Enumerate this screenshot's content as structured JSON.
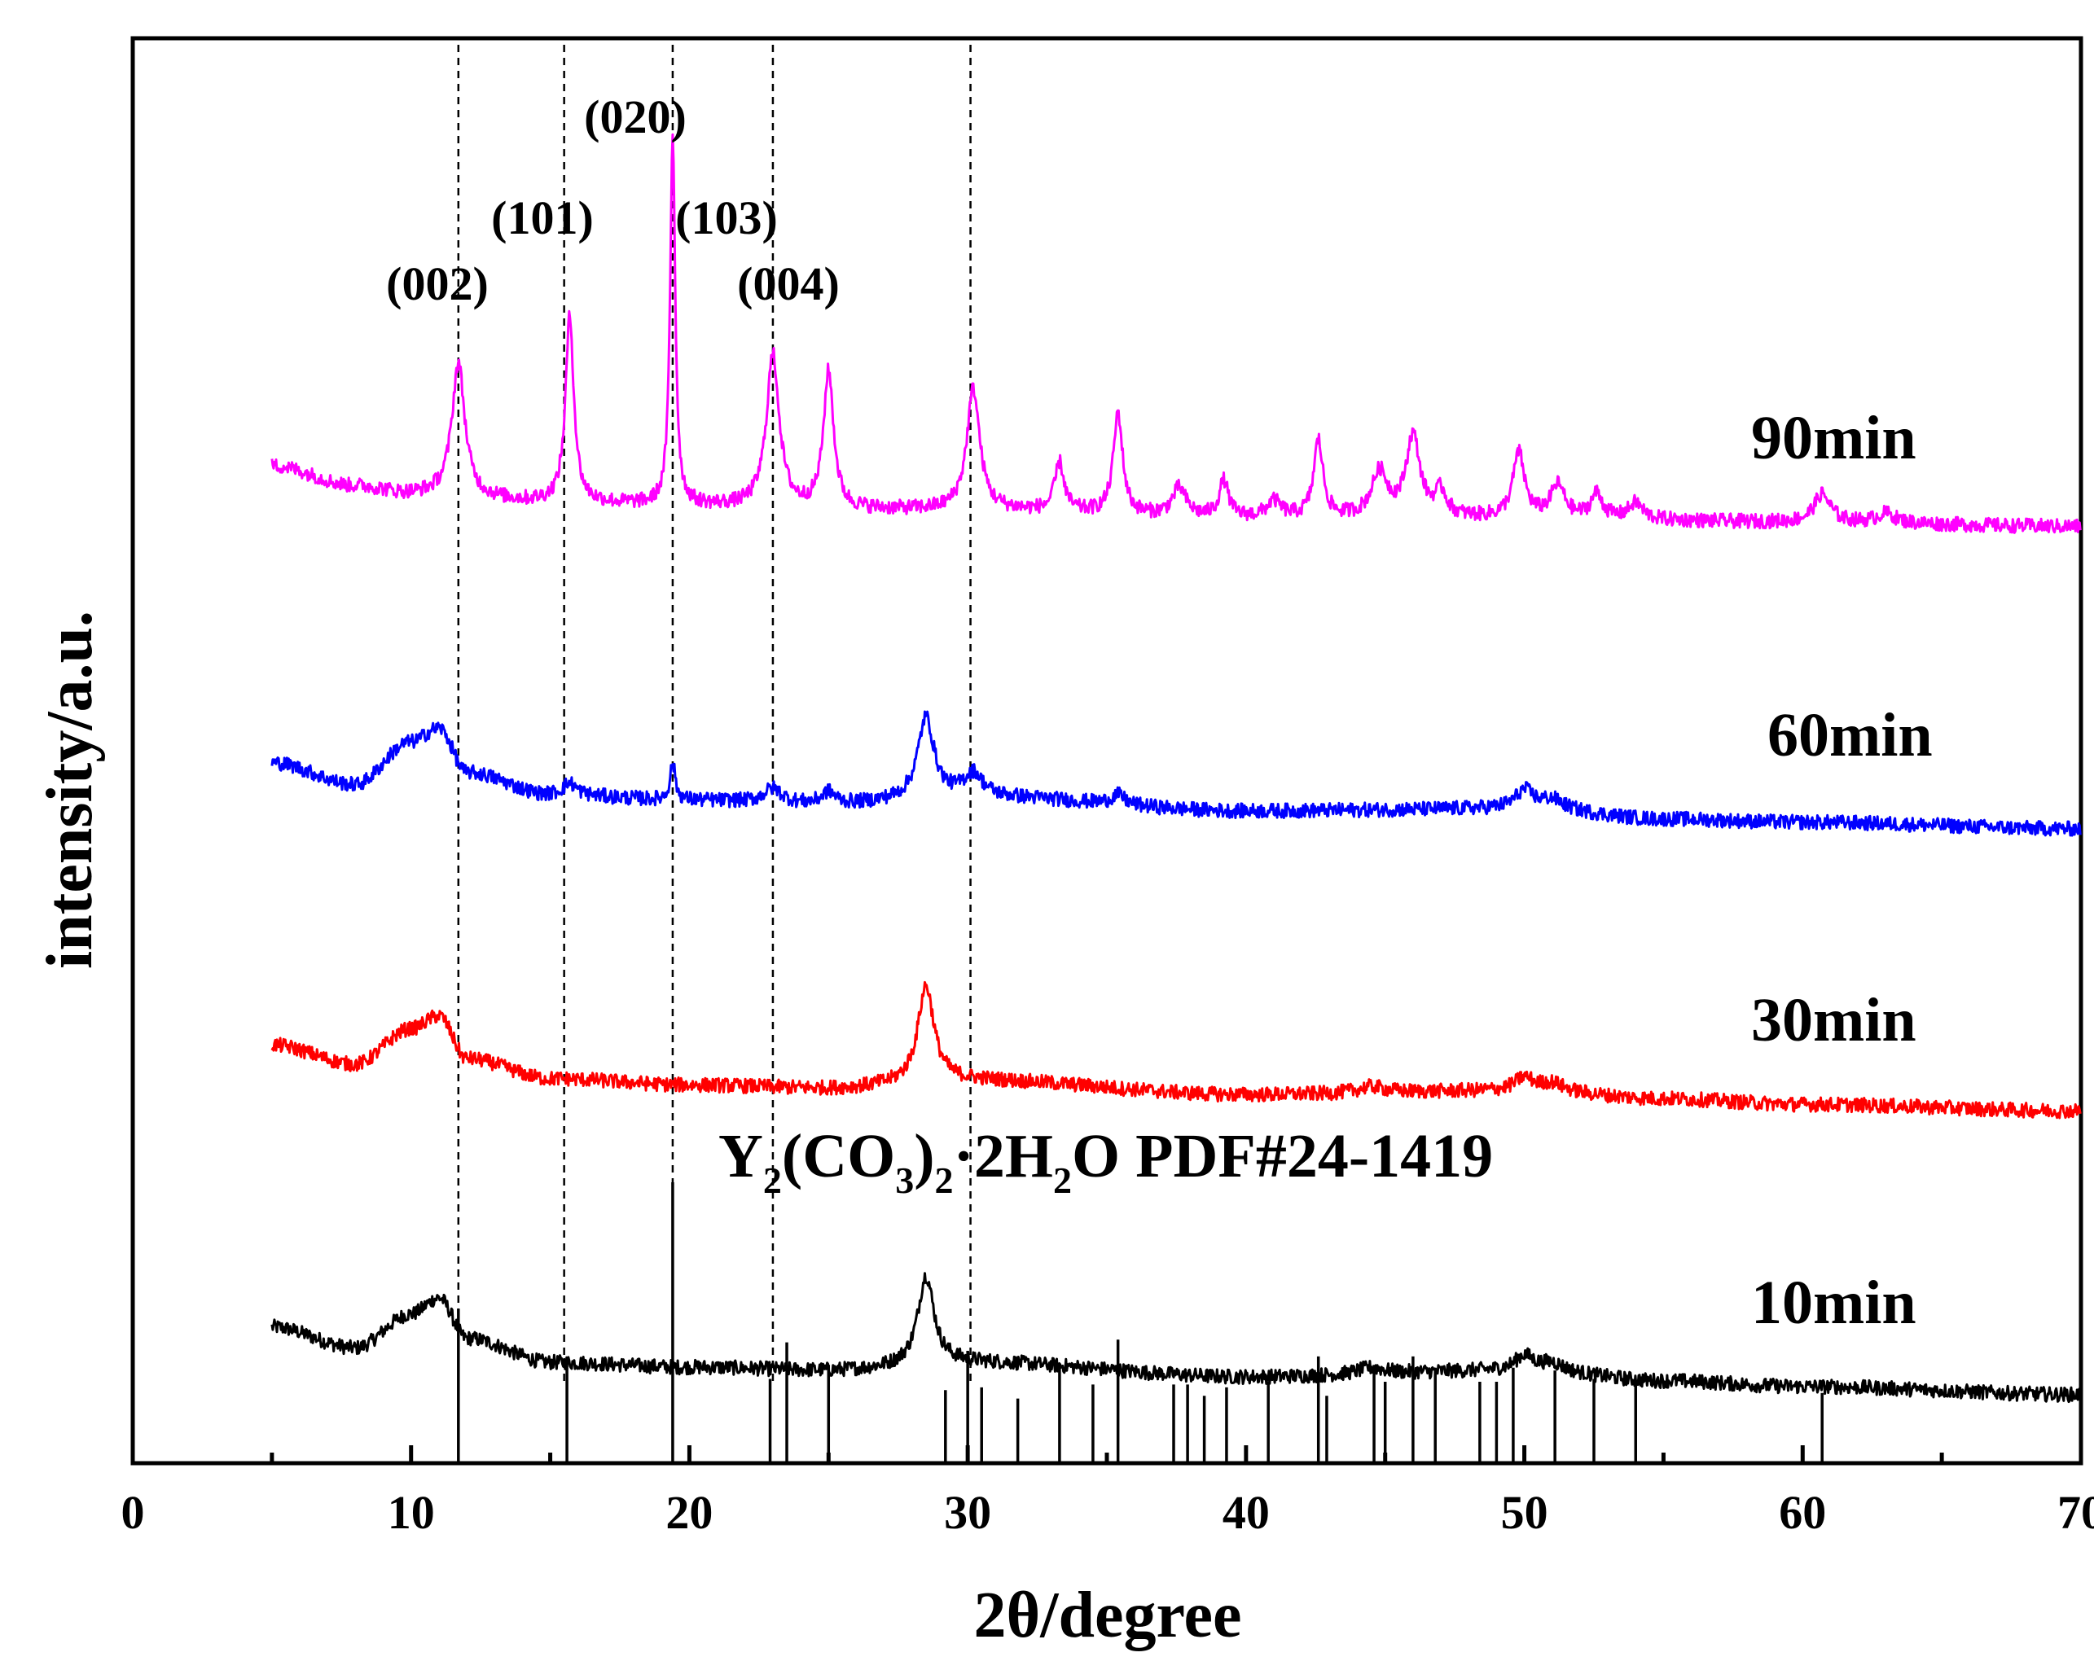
{
  "chart_data": {
    "type": "line",
    "title": "",
    "xlabel": "2θ/degree",
    "ylabel": "intensity/a.u.",
    "xlim": [
      0,
      70
    ],
    "x_ticks": [
      0,
      10,
      20,
      30,
      40,
      50,
      60,
      70
    ],
    "x_tick_labels": [
      "0",
      "10",
      "20",
      "30",
      "40",
      "50",
      "60",
      "70"
    ],
    "y_ticks_shown": false,
    "grid": false,
    "series_labels_note": "curves are vertically offset (stacked) for clarity",
    "series": [
      {
        "name": "10min",
        "color": "#000000",
        "offset": 0,
        "baseline": [
          [
            5,
            1.62
          ],
          [
            8,
            1.36
          ],
          [
            10,
            1.78
          ],
          [
            11,
            1.98
          ],
          [
            12,
            1.48
          ],
          [
            15,
            1.18
          ],
          [
            20,
            1.12
          ],
          [
            25,
            1.08
          ],
          [
            30,
            1.18
          ],
          [
            40,
            1.0
          ],
          [
            50,
            1.08
          ],
          [
            55,
            0.95
          ],
          [
            60,
            0.88
          ],
          [
            70,
            0.78
          ]
        ],
        "peaks": [
          {
            "x": 28.5,
            "h": 1.1,
            "w": 0.35
          },
          {
            "x": 50.0,
            "h": 0.18,
            "w": 0.4
          },
          {
            "x": 51.0,
            "h": 0.1,
            "w": 0.5
          },
          {
            "x": 44.5,
            "h": 0.08,
            "w": 0.6
          }
        ]
      },
      {
        "name": "30min",
        "color": "#ff0000",
        "offset": 3.5,
        "baseline": [
          [
            5,
            1.62
          ],
          [
            8,
            1.38
          ],
          [
            10,
            1.82
          ],
          [
            11,
            1.98
          ],
          [
            12,
            1.45
          ],
          [
            15,
            1.2
          ],
          [
            20,
            1.12
          ],
          [
            25,
            1.08
          ],
          [
            30,
            1.18
          ],
          [
            40,
            1.0
          ],
          [
            50,
            1.05
          ],
          [
            55,
            0.95
          ],
          [
            60,
            0.88
          ],
          [
            70,
            0.8
          ]
        ],
        "peaks": [
          {
            "x": 28.5,
            "h": 1.2,
            "w": 0.35
          },
          {
            "x": 50.0,
            "h": 0.16,
            "w": 0.4
          },
          {
            "x": 51.0,
            "h": 0.1,
            "w": 0.5
          },
          {
            "x": 44.5,
            "h": 0.08,
            "w": 0.6
          }
        ]
      },
      {
        "name": "60min",
        "color": "#0000ff",
        "offset": 7.0,
        "baseline": [
          [
            5,
            1.62
          ],
          [
            8,
            1.35
          ],
          [
            10,
            1.88
          ],
          [
            11,
            2.05
          ],
          [
            12,
            1.5
          ],
          [
            15,
            1.22
          ],
          [
            20,
            1.15
          ],
          [
            25,
            1.1
          ],
          [
            30,
            1.2
          ],
          [
            40,
            1.02
          ],
          [
            50,
            1.05
          ],
          [
            55,
            0.92
          ],
          [
            60,
            0.88
          ],
          [
            70,
            0.8
          ]
        ],
        "peaks": [
          {
            "x": 15.7,
            "h": 0.15,
            "w": 0.3
          },
          {
            "x": 19.4,
            "h": 0.45,
            "w": 0.12
          },
          {
            "x": 23.0,
            "h": 0.18,
            "w": 0.4
          },
          {
            "x": 25.0,
            "h": 0.15,
            "w": 0.3
          },
          {
            "x": 28.5,
            "h": 1.0,
            "w": 0.35
          },
          {
            "x": 30.2,
            "h": 0.28,
            "w": 0.4
          },
          {
            "x": 35.4,
            "h": 0.12,
            "w": 0.3
          },
          {
            "x": 50.0,
            "h": 0.22,
            "w": 0.4
          },
          {
            "x": 51.0,
            "h": 0.12,
            "w": 0.5
          }
        ]
      },
      {
        "name": "90min",
        "color": "#ff00ff",
        "offset": 10.7,
        "baseline": [
          [
            5,
            1.6
          ],
          [
            8,
            1.35
          ],
          [
            10,
            1.25
          ],
          [
            15,
            1.15
          ],
          [
            20,
            1.1
          ],
          [
            25,
            1.05
          ],
          [
            30,
            1.05
          ],
          [
            40,
            0.95
          ],
          [
            50,
            0.95
          ],
          [
            60,
            0.9
          ],
          [
            70,
            0.85
          ]
        ],
        "peaks": [
          {
            "x": 11.7,
            "h": 1.65,
            "w": 0.28
          },
          {
            "x": 15.7,
            "h": 2.3,
            "w": 0.18
          },
          {
            "x": 19.4,
            "h": 4.6,
            "w": 0.11
          },
          {
            "x": 23.0,
            "h": 1.9,
            "w": 0.28
          },
          {
            "x": 25.0,
            "h": 1.7,
            "w": 0.22
          },
          {
            "x": 30.2,
            "h": 1.5,
            "w": 0.28
          },
          {
            "x": 33.3,
            "h": 0.6,
            "w": 0.2
          },
          {
            "x": 35.4,
            "h": 1.25,
            "w": 0.2
          },
          {
            "x": 37.6,
            "h": 0.35,
            "w": 0.3
          },
          {
            "x": 39.2,
            "h": 0.45,
            "w": 0.2
          },
          {
            "x": 41.0,
            "h": 0.2,
            "w": 0.3
          },
          {
            "x": 42.6,
            "h": 0.95,
            "w": 0.2
          },
          {
            "x": 44.8,
            "h": 0.55,
            "w": 0.35
          },
          {
            "x": 46.0,
            "h": 1.0,
            "w": 0.3
          },
          {
            "x": 47.0,
            "h": 0.3,
            "w": 0.25
          },
          {
            "x": 49.8,
            "h": 0.8,
            "w": 0.25
          },
          {
            "x": 51.2,
            "h": 0.4,
            "w": 0.3
          },
          {
            "x": 52.6,
            "h": 0.3,
            "w": 0.25
          },
          {
            "x": 54.0,
            "h": 0.2,
            "w": 0.3
          },
          {
            "x": 60.7,
            "h": 0.35,
            "w": 0.35
          },
          {
            "x": 63.0,
            "h": 0.12,
            "w": 0.4
          }
        ]
      }
    ],
    "reference_pattern": {
      "name": "Y2(CO3)2·2H2O PDF#24-1419",
      "lines": [
        [
          11.7,
          0.55
        ],
        [
          15.6,
          0.36
        ],
        [
          19.4,
          1.0
        ],
        [
          22.9,
          0.3
        ],
        [
          23.5,
          0.43
        ],
        [
          25.0,
          0.35
        ],
        [
          29.2,
          0.26
        ],
        [
          30.0,
          0.4
        ],
        [
          30.5,
          0.27
        ],
        [
          31.8,
          0.23
        ],
        [
          33.3,
          0.35
        ],
        [
          34.5,
          0.28
        ],
        [
          35.4,
          0.44
        ],
        [
          37.4,
          0.28
        ],
        [
          37.9,
          0.28
        ],
        [
          38.5,
          0.24
        ],
        [
          39.3,
          0.27
        ],
        [
          40.8,
          0.29
        ],
        [
          42.6,
          0.38
        ],
        [
          42.9,
          0.24
        ],
        [
          44.6,
          0.35
        ],
        [
          45.0,
          0.29
        ],
        [
          46.0,
          0.38
        ],
        [
          46.8,
          0.34
        ],
        [
          48.4,
          0.29
        ],
        [
          49.0,
          0.29
        ],
        [
          49.6,
          0.34
        ],
        [
          51.1,
          0.33
        ],
        [
          52.5,
          0.3
        ],
        [
          54.0,
          0.29
        ],
        [
          60.7,
          0.25
        ]
      ]
    },
    "dashed_reference_lines_x": [
      11.7,
      15.5,
      19.4,
      23.0,
      30.1
    ],
    "peak_labels": [
      {
        "text": "(002)",
        "x": 11.7
      },
      {
        "text": "(101)",
        "x": 15.7
      },
      {
        "text": "(020)",
        "x": 19.4
      },
      {
        "text": "(103)",
        "x": 23.0
      },
      {
        "text": "(004)",
        "x": 25.0
      }
    ],
    "legend_placement": "right of each curve",
    "series_labels": [
      "10min",
      "30min",
      "60min",
      "90min"
    ]
  },
  "labels": {
    "pdf_prefix_Y": "Y",
    "pdf_sub_2a": "2",
    "pdf_paren_open": "(CO",
    "pdf_sub_3": "3",
    "pdf_paren_close": ")",
    "pdf_sub_2b": "2",
    "pdf_dot_2H": "·2H",
    "pdf_sub_2c": "2",
    "pdf_rest": "O PDF#24-1419"
  }
}
